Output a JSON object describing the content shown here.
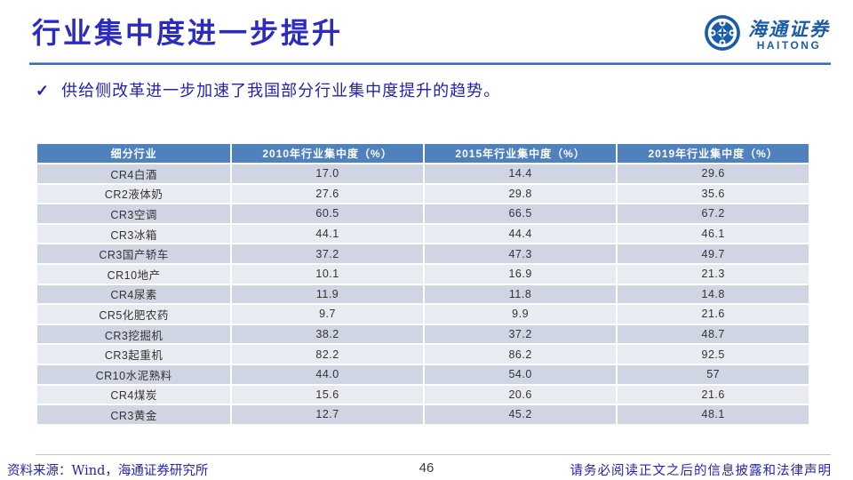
{
  "slide": {
    "title": "行业集中度进一步提升",
    "check_glyph": "✓",
    "bullet": "供给侧改革进一步加速了我国部分行业集中度提升的趋势。"
  },
  "logo": {
    "cn": "海通证券",
    "en": "HAITONG"
  },
  "table": {
    "headers": [
      "细分行业",
      "2010年行业集中度（%）",
      "2015年行业集中度（%）",
      "2019年行业集中度（%）"
    ],
    "rows": [
      [
        "CR4白酒",
        "17.0",
        "14.4",
        "29.6"
      ],
      [
        "CR2液体奶",
        "27.6",
        "29.8",
        "35.6"
      ],
      [
        "CR3空调",
        "60.5",
        "66.5",
        "67.2"
      ],
      [
        "CR3冰箱",
        "44.1",
        "44.4",
        "46.1"
      ],
      [
        "CR3国产轿车",
        "37.2",
        "47.3",
        "49.7"
      ],
      [
        "CR10地产",
        "10.1",
        "16.9",
        "21.3"
      ],
      [
        "CR4尿素",
        "11.9",
        "11.8",
        "14.8"
      ],
      [
        "CR5化肥农药",
        "9.7",
        "9.9",
        "21.6"
      ],
      [
        "CR3挖掘机",
        "38.2",
        "37.2",
        "48.7"
      ],
      [
        "CR3起重机",
        "82.2",
        "86.2",
        "92.5"
      ],
      [
        "CR10水泥熟料",
        "44.0",
        "54.0",
        "57"
      ],
      [
        "CR4煤炭",
        "15.6",
        "20.6",
        "21.6"
      ],
      [
        "CR3黄金",
        "12.7",
        "45.2",
        "48.1"
      ]
    ]
  },
  "footer": {
    "source": "资料来源：Wind，海通证券研究所",
    "page": "46",
    "disclaimer": "请务必阅读正文之后的信息披露和法律声明"
  },
  "colors": {
    "title_blue": "#2b2bc0",
    "bullet_blue": "#2222b2",
    "table_header_bg": "#4f81bd",
    "row_odd": "#cfd5e3",
    "row_even": "#e9ebf2",
    "logo_blue": "#1a5ca8",
    "footer_blue": "#2525ae"
  }
}
